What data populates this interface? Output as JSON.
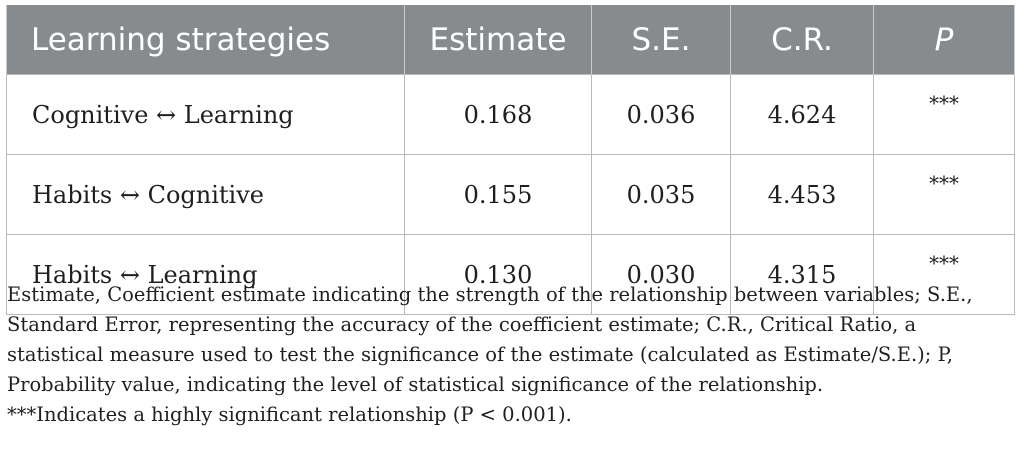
{
  "table": {
    "headers": [
      "Learning strategies",
      "Estimate",
      "S.E.",
      "C.R.",
      "P"
    ],
    "rows": [
      {
        "strategy": "Cognitive ↔ Learning",
        "estimate": "0.168",
        "se": "0.036",
        "cr": "4.624",
        "p": "***"
      },
      {
        "strategy": "Habits ↔ Cognitive",
        "estimate": "0.155",
        "se": "0.035",
        "cr": "4.453",
        "p": "***"
      },
      {
        "strategy": "Habits ↔ Learning",
        "estimate": "0.130",
        "se": "0.030",
        "cr": "4.315",
        "p": "***"
      }
    ]
  },
  "notes": {
    "definitions": "Estimate, Coefficient estimate indicating the strength of the relationship between variables; S.E., Standard Error, representing the accuracy of the coefficient estimate; C.R., Critical Ratio, a statistical measure used to test the significance of the estimate (calculated as Estimate/S.E.); P, Probability value, indicating the level of statistical significance of the relationship.",
    "significance": "***Indicates a highly significant relationship (P < 0.001)."
  }
}
